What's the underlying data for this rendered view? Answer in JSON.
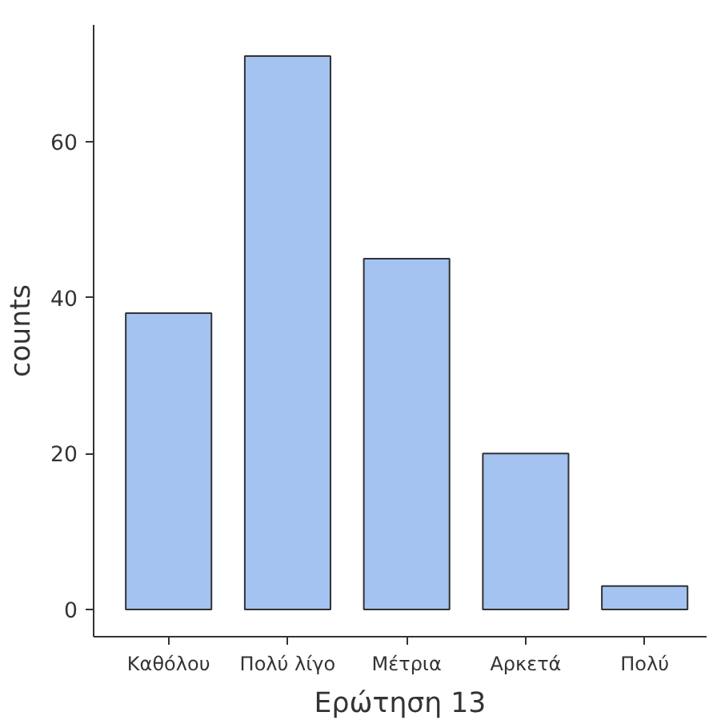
{
  "chart_data": {
    "type": "bar",
    "xlabel": "Ερώτηση 13",
    "ylabel": "counts",
    "categories": [
      "Καθόλου",
      "Πολύ λίγο",
      "Μέτρια",
      "Αρκετά",
      "Πολύ"
    ],
    "values": [
      38,
      71,
      45,
      20,
      3
    ],
    "color": "#a4c3f0",
    "ylim": [
      -3.5,
      75
    ],
    "yticks": [
      0,
      20,
      40,
      60
    ],
    "grid": false
  }
}
